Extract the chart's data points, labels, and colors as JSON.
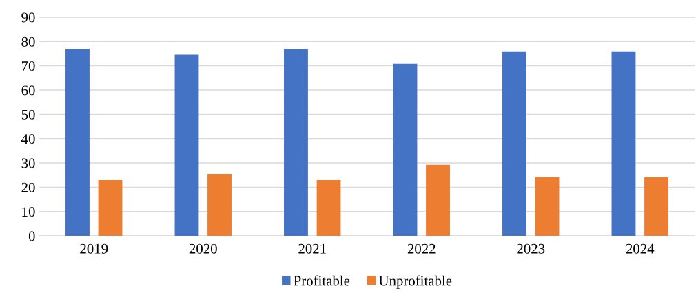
{
  "chart_data": {
    "type": "bar",
    "categories": [
      "2019",
      "2020",
      "2021",
      "2022",
      "2023",
      "2024"
    ],
    "series": [
      {
        "name": "Profitable",
        "color": "#4472c4",
        "values": [
          77.0,
          74.6,
          77.0,
          70.8,
          75.9,
          75.9
        ]
      },
      {
        "name": "Unprofitable",
        "color": "#ed7d31",
        "values": [
          22.9,
          25.5,
          22.9,
          29.2,
          24.1,
          24.1
        ]
      }
    ],
    "ylim": [
      0,
      90
    ],
    "yticks": [
      0,
      10,
      20,
      30,
      40,
      50,
      60,
      70,
      80,
      90
    ],
    "grid": "y",
    "legend": "bottom"
  }
}
